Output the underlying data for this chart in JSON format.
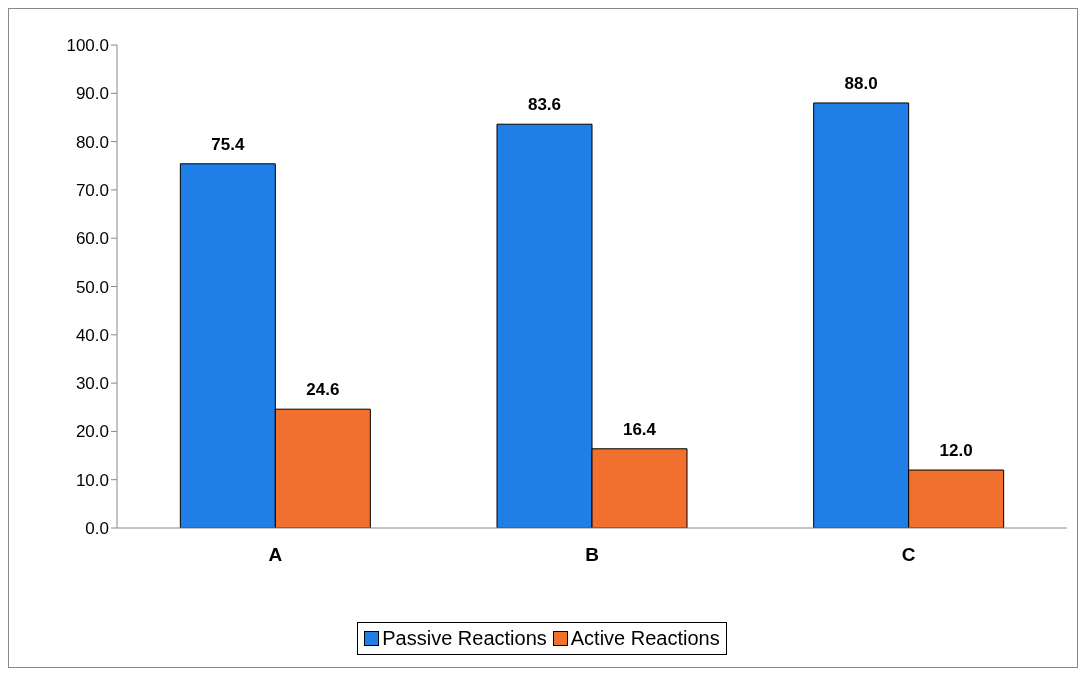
{
  "chart_data": {
    "type": "bar",
    "categories": [
      "A",
      "B",
      "C"
    ],
    "series": [
      {
        "name": "Passive Reactions",
        "color": "#1f7fe6",
        "values": [
          75.4,
          83.6,
          88.0
        ],
        "value_labels": [
          "75.4",
          "83.6",
          "88.0"
        ]
      },
      {
        "name": "Active Reactions",
        "color": "#f2702e",
        "values": [
          24.6,
          16.4,
          12.0
        ],
        "value_labels": [
          "24.6",
          "16.4",
          "12.0"
        ]
      }
    ],
    "ylim": [
      0,
      100
    ],
    "yticks": [
      {
        "value": 0,
        "label": "0.0"
      },
      {
        "value": 10,
        "label": "10.0"
      },
      {
        "value": 20,
        "label": "20.0"
      },
      {
        "value": 30,
        "label": "30.0"
      },
      {
        "value": 40,
        "label": "40.0"
      },
      {
        "value": 50,
        "label": "50.0"
      },
      {
        "value": 60,
        "label": "60.0"
      },
      {
        "value": 70,
        "label": "70.0"
      },
      {
        "value": 80,
        "label": "80.0"
      },
      {
        "value": 90,
        "label": "90.0"
      },
      {
        "value": 100,
        "label": "100.0"
      }
    ],
    "grid": false,
    "legend": "bottom"
  }
}
